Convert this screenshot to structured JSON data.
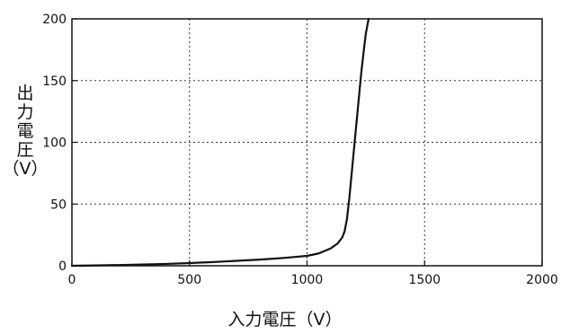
{
  "chart_data": {
    "type": "line",
    "title": "",
    "xlabel": "入力電圧（V）",
    "ylabel_lines": [
      "出",
      "力",
      "電",
      "圧",
      "（V）"
    ],
    "xlim": [
      0,
      2000
    ],
    "ylim": [
      0,
      200
    ],
    "x_ticks": [
      0,
      500,
      1000,
      1500,
      2000
    ],
    "y_ticks": [
      0,
      50,
      100,
      150,
      200
    ],
    "x_tick_labels": [
      "0",
      "500",
      "1000",
      "1500",
      "2000"
    ],
    "y_tick_labels": [
      "0",
      "50",
      "100",
      "150",
      "200"
    ],
    "grid": true,
    "grid_style": "dotted",
    "line_color": "#111111",
    "series": [
      {
        "x": [
          0,
          100,
          200,
          300,
          400,
          500,
          600,
          700,
          800,
          900,
          1000,
          1050,
          1100,
          1130,
          1150,
          1160,
          1170,
          1180,
          1190,
          1200,
          1210,
          1220,
          1230,
          1240,
          1250,
          1262
        ],
        "y": [
          0,
          0.3,
          0.6,
          1.0,
          1.5,
          2.2,
          3.0,
          4.0,
          5.0,
          6.3,
          8.0,
          10,
          14,
          18,
          23,
          28,
          38,
          55,
          75,
          95,
          115,
          135,
          155,
          172,
          188,
          200
        ]
      }
    ]
  }
}
